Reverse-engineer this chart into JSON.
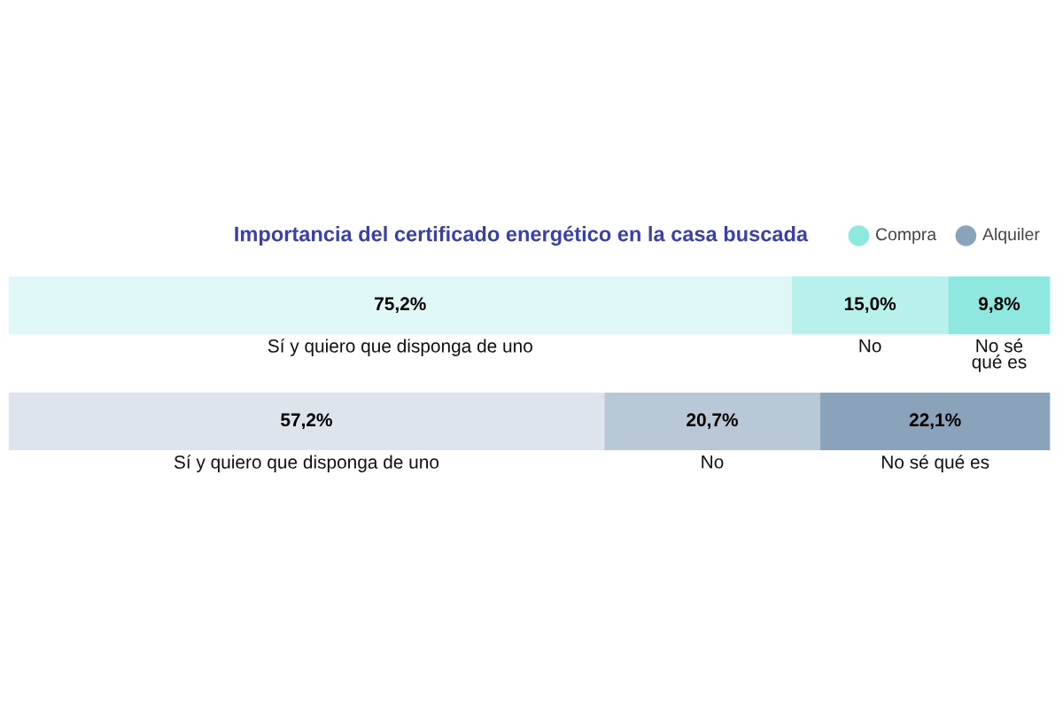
{
  "chart_data": {
    "type": "bar",
    "orientation": "horizontal",
    "stacked": true,
    "title": "Importancia del certificado energético en la casa buscada",
    "categories": [
      null,
      null
    ],
    "series": [
      {
        "name": "Sí y quiero que disponga de uno",
        "colors": [
          "#dff7f7",
          "#dde4ec"
        ],
        "values": [
          75.2,
          57.2
        ],
        "value_labels": [
          "75,2%",
          "57,2%"
        ]
      },
      {
        "name": "No",
        "colors": [
          "#b8f0ec",
          "#b9c8d6"
        ],
        "values": [
          15.0,
          20.7
        ],
        "value_labels": [
          "15,0%",
          "20,7%"
        ]
      },
      {
        "name": "No sé qué es",
        "colors": [
          "#8ee8e0",
          "#8aa3bb"
        ],
        "values": [
          9.8,
          22.1
        ],
        "value_labels": [
          "9,8%",
          "22,1%"
        ]
      }
    ],
    "data_labels": true,
    "annotations": [
      "Compra",
      "Alquiler"
    ]
  }
}
